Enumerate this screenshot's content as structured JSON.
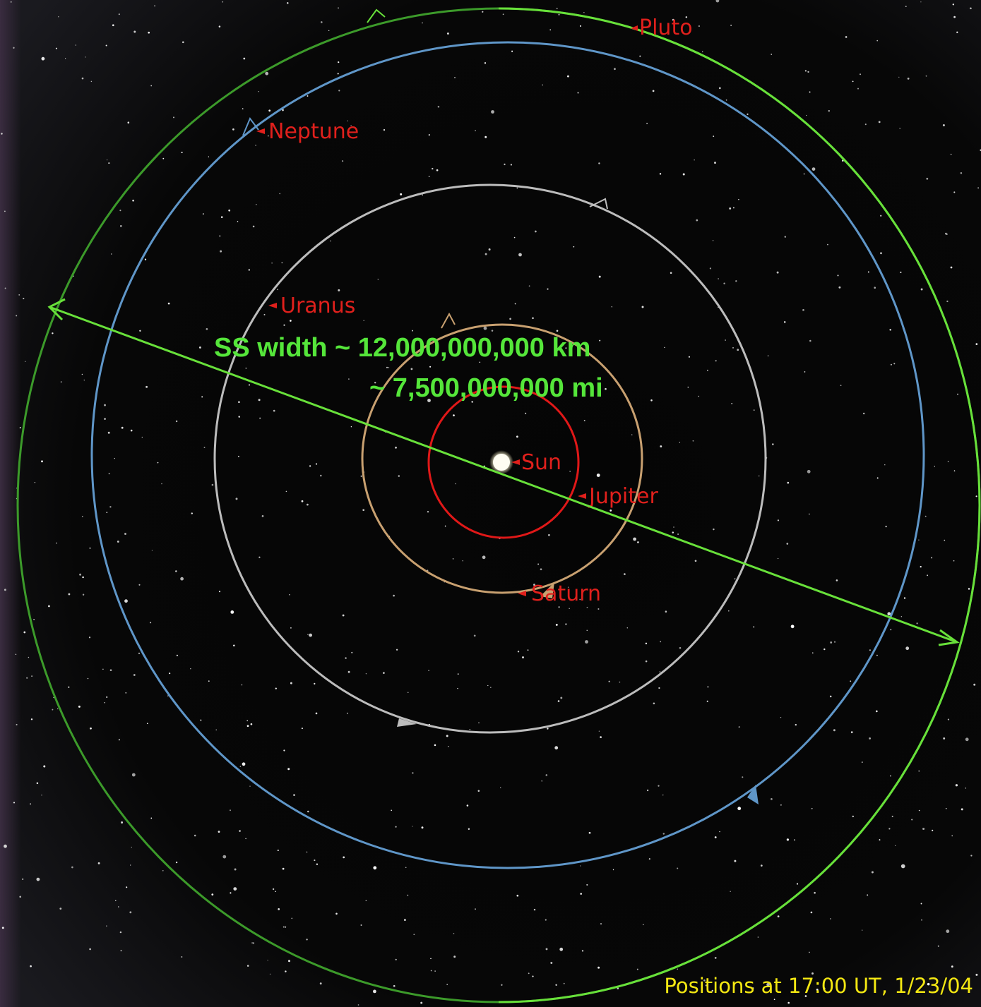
{
  "labels": {
    "pluto": "Pluto",
    "neptune": "Neptune",
    "uranus": "Uranus",
    "sun": "Sun",
    "jupiter": "Jupiter",
    "saturn": "Saturn"
  },
  "annotation": {
    "line1": "SS width ~ 12,000,000,000 km",
    "line2": "~ 7,500,000,000 mi"
  },
  "caption": "Positions at 17:00 UT, 1/23/04"
}
